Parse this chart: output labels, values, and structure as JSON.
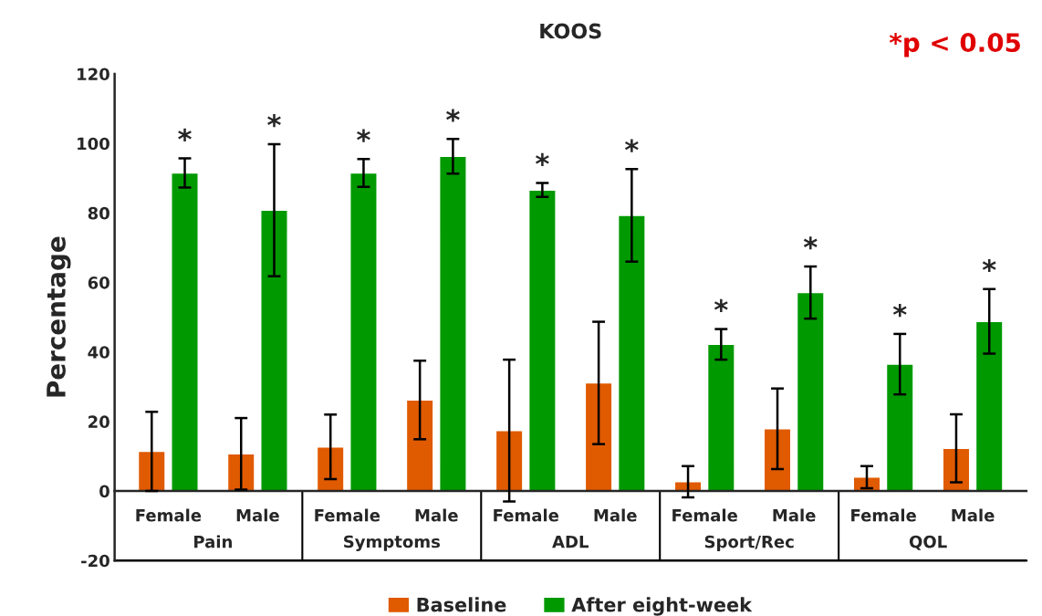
{
  "chart_data": {
    "type": "bar",
    "title": "KOOS",
    "ylabel": "Percentage",
    "categories": [
      "Female",
      "Male",
      "Female",
      "Male",
      "Female",
      "Male",
      "Female",
      "Male",
      "Female",
      "Male"
    ],
    "series": [
      {
        "name": "Baseline",
        "color": "#e05a00",
        "values": [
          11.4,
          10.7,
          12.7,
          26.2,
          17.4,
          31.1,
          2.7,
          17.9,
          4.0,
          12.3
        ],
        "errors": [
          11.4,
          10.3,
          9.3,
          11.3,
          20.4,
          17.6,
          4.5,
          11.6,
          3.2,
          9.8
        ]
      },
      {
        "name": "After eight-week",
        "color": "#009900",
        "values": [
          91.5,
          80.8,
          91.5,
          96.3,
          86.6,
          79.3,
          42.2,
          57.1,
          36.5,
          48.8
        ],
        "errors": [
          4.2,
          19,
          4,
          5,
          2,
          13.3,
          4.4,
          7.5,
          8.7,
          9.3
        ]
      }
    ],
    "annotations": [
      "Pain",
      "Symptoms",
      "ADL",
      "Sport/Rec",
      "QOL",
      "*",
      "*",
      "*",
      "*",
      "*",
      "*",
      "*",
      "*",
      "*",
      "*",
      "*p < 0.05"
    ],
    "ylim": [
      -20,
      120
    ],
    "yticks": [
      -20,
      0,
      20,
      40,
      60,
      80,
      100,
      120
    ],
    "grid": false,
    "legend": "bottom"
  }
}
